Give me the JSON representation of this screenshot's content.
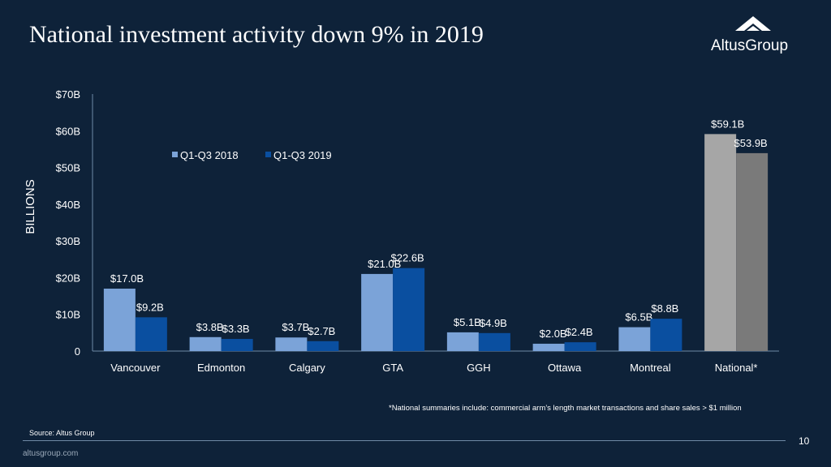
{
  "header": {
    "title": "National investment activity down 9% in 2019",
    "logo_text": "AltusGroup"
  },
  "chart_data": {
    "type": "bar",
    "title": "National investment activity down 9% in 2019",
    "ylabel": "BILLIONS",
    "xlabel": "",
    "ylim": [
      0,
      70
    ],
    "yticks": [
      0,
      10,
      20,
      30,
      40,
      50,
      60,
      70
    ],
    "ytick_labels": [
      "0",
      "$10B",
      "$20B",
      "$30B",
      "$40B",
      "$50B",
      "$60B",
      "$70B"
    ],
    "categories": [
      "Vancouver",
      "Edmonton",
      "Calgary",
      "GTA",
      "GGH",
      "Ottawa",
      "Montreal",
      "National*"
    ],
    "legend_position": "top-left",
    "series": [
      {
        "name": "Q1-Q3 2018",
        "color": "#7ba3d8",
        "highlight_color": "#a6a6a6",
        "values": [
          17.0,
          3.8,
          3.7,
          21.0,
          5.1,
          2.0,
          6.5,
          59.1
        ],
        "labels": [
          "$17.0B",
          "$3.8B",
          "$3.7B",
          "$21.0B",
          "$5.1B",
          "$2.0B",
          "$6.5B",
          "$59.1B"
        ]
      },
      {
        "name": "Q1-Q3 2019",
        "color": "#0a4fa0",
        "highlight_color": "#7a7a7a",
        "values": [
          9.2,
          3.3,
          2.7,
          22.6,
          4.9,
          2.4,
          8.8,
          53.9
        ],
        "labels": [
          "$9.2B",
          "$3.3B",
          "$2.7B",
          "$22.6B",
          "$4.9B",
          "$2.4B",
          "$8.8B",
          "$53.9B"
        ]
      }
    ],
    "highlight_category": "National*"
  },
  "footer": {
    "footnote": "*National summaries include: commercial arm’s length market transactions and share sales > $1 million",
    "source": "Source:  Altus Group",
    "page_number": "10",
    "website": "altusgroup.com"
  },
  "colors": {
    "background": "#0e2239",
    "axis": "#6f8aa6"
  }
}
